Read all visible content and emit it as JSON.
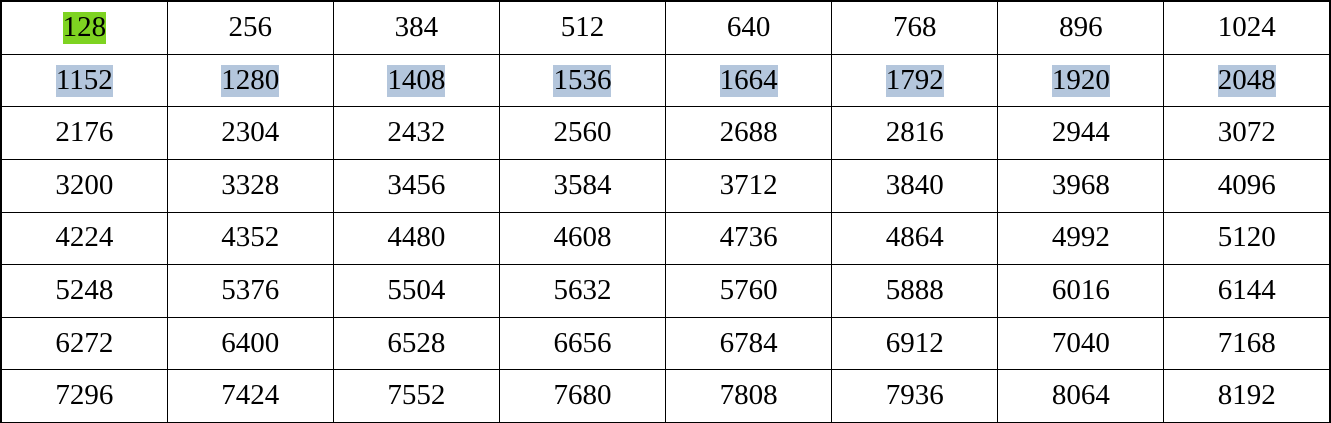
{
  "colors": {
    "highlight_green": "#7ed321",
    "highlight_selection": "#b4c6dc",
    "text": "#000000",
    "grid_line": "#000000"
  },
  "table": {
    "rows": [
      [
        {
          "value": "128",
          "highlight": "green"
        },
        {
          "value": "256",
          "highlight": ""
        },
        {
          "value": "384",
          "highlight": ""
        },
        {
          "value": "512",
          "highlight": ""
        },
        {
          "value": "640",
          "highlight": ""
        },
        {
          "value": "768",
          "highlight": ""
        },
        {
          "value": "896",
          "highlight": ""
        },
        {
          "value": "1024",
          "highlight": ""
        }
      ],
      [
        {
          "value": "1152",
          "highlight": "selection"
        },
        {
          "value": "1280",
          "highlight": "selection"
        },
        {
          "value": "1408",
          "highlight": "selection"
        },
        {
          "value": "1536",
          "highlight": "selection"
        },
        {
          "value": "1664",
          "highlight": "selection"
        },
        {
          "value": "1792",
          "highlight": "selection"
        },
        {
          "value": "1920",
          "highlight": "selection"
        },
        {
          "value": "2048",
          "highlight": "selection"
        }
      ],
      [
        {
          "value": "2176",
          "highlight": ""
        },
        {
          "value": "2304",
          "highlight": ""
        },
        {
          "value": "2432",
          "highlight": ""
        },
        {
          "value": "2560",
          "highlight": ""
        },
        {
          "value": "2688",
          "highlight": ""
        },
        {
          "value": "2816",
          "highlight": ""
        },
        {
          "value": "2944",
          "highlight": ""
        },
        {
          "value": "3072",
          "highlight": ""
        }
      ],
      [
        {
          "value": "3200",
          "highlight": ""
        },
        {
          "value": "3328",
          "highlight": ""
        },
        {
          "value": "3456",
          "highlight": ""
        },
        {
          "value": "3584",
          "highlight": ""
        },
        {
          "value": "3712",
          "highlight": ""
        },
        {
          "value": "3840",
          "highlight": ""
        },
        {
          "value": "3968",
          "highlight": ""
        },
        {
          "value": "4096",
          "highlight": ""
        }
      ],
      [
        {
          "value": "4224",
          "highlight": ""
        },
        {
          "value": "4352",
          "highlight": ""
        },
        {
          "value": "4480",
          "highlight": ""
        },
        {
          "value": "4608",
          "highlight": ""
        },
        {
          "value": "4736",
          "highlight": ""
        },
        {
          "value": "4864",
          "highlight": ""
        },
        {
          "value": "4992",
          "highlight": ""
        },
        {
          "value": "5120",
          "highlight": ""
        }
      ],
      [
        {
          "value": "5248",
          "highlight": ""
        },
        {
          "value": "5376",
          "highlight": ""
        },
        {
          "value": "5504",
          "highlight": ""
        },
        {
          "value": "5632",
          "highlight": ""
        },
        {
          "value": "5760",
          "highlight": ""
        },
        {
          "value": "5888",
          "highlight": ""
        },
        {
          "value": "6016",
          "highlight": ""
        },
        {
          "value": "6144",
          "highlight": ""
        }
      ],
      [
        {
          "value": "6272",
          "highlight": ""
        },
        {
          "value": "6400",
          "highlight": ""
        },
        {
          "value": "6528",
          "highlight": ""
        },
        {
          "value": "6656",
          "highlight": ""
        },
        {
          "value": "6784",
          "highlight": ""
        },
        {
          "value": "6912",
          "highlight": ""
        },
        {
          "value": "7040",
          "highlight": ""
        },
        {
          "value": "7168",
          "highlight": ""
        }
      ],
      [
        {
          "value": "7296",
          "highlight": ""
        },
        {
          "value": "7424",
          "highlight": ""
        },
        {
          "value": "7552",
          "highlight": ""
        },
        {
          "value": "7680",
          "highlight": ""
        },
        {
          "value": "7808",
          "highlight": ""
        },
        {
          "value": "7936",
          "highlight": ""
        },
        {
          "value": "8064",
          "highlight": ""
        },
        {
          "value": "8192",
          "highlight": ""
        }
      ]
    ]
  }
}
